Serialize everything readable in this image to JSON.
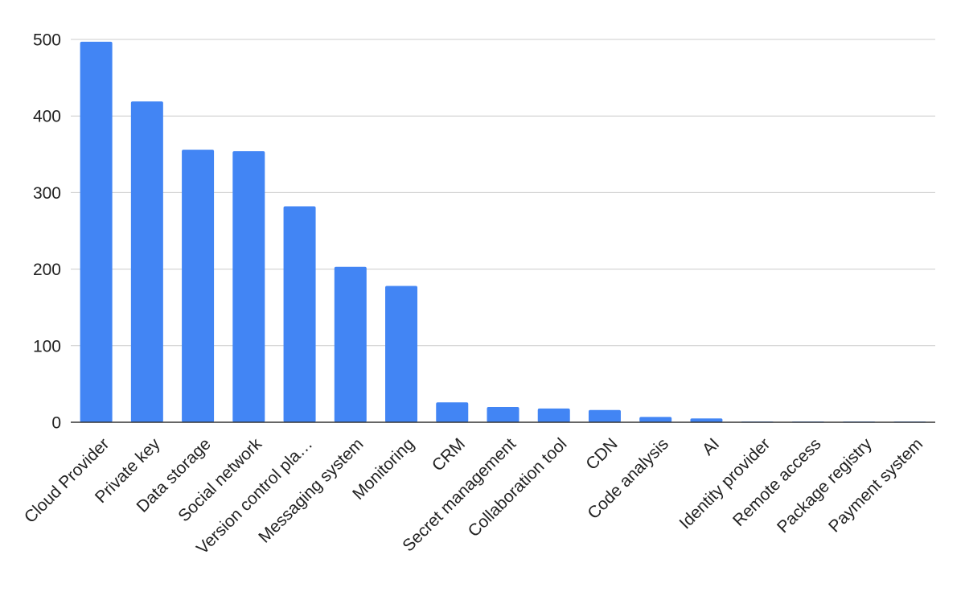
{
  "chart_data": {
    "type": "bar",
    "title": "",
    "xlabel": "",
    "ylabel": "",
    "ylim": [
      0,
      500
    ],
    "yticks": [
      0,
      100,
      200,
      300,
      400,
      500
    ],
    "grid": true,
    "legend": "none",
    "bar_color": "#4285f4",
    "categories": [
      "Cloud Provider",
      "Private key",
      "Data storage",
      "Social network",
      "Version control pla…",
      "Messaging system",
      "Monitoring",
      "CRM",
      "Secret management",
      "Collaboration tool",
      "CDN",
      "Code analysis",
      "AI",
      "Identity provider",
      "Remote access",
      "Package registry",
      "Payment system"
    ],
    "values": [
      497,
      419,
      356,
      354,
      282,
      203,
      178,
      26,
      20,
      18,
      16,
      7,
      5,
      1,
      1,
      1,
      1
    ]
  }
}
